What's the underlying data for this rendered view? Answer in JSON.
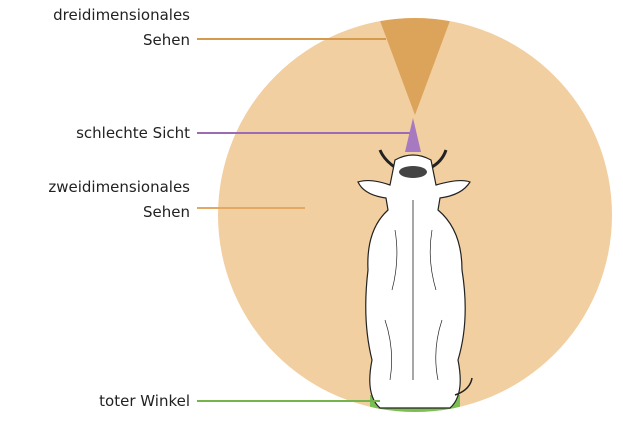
{
  "labels": [
    {
      "lines": [
        "dreidimensionales",
        "Sehen"
      ]
    },
    {
      "lines": [
        "schlechte Sicht"
      ]
    },
    {
      "lines": [
        "zweidimensionales",
        "Sehen"
      ]
    },
    {
      "lines": [
        "toter Winkel"
      ]
    }
  ]
}
